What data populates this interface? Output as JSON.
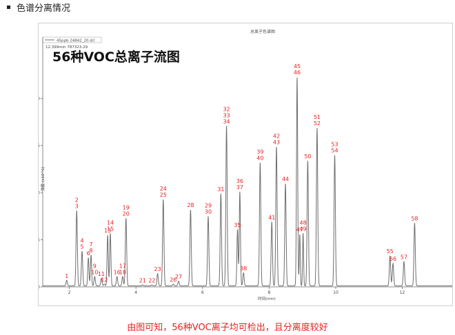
{
  "section_heading": "色谱分离情况",
  "caption": "由图可知，56种VOC离子均可检出，且分离度较好",
  "colors": {
    "trace": "#6d6d6d",
    "peak_label": "#e8201f",
    "caption": "#e8201f",
    "axis": "#666666"
  },
  "chart_data": {
    "type": "line",
    "title": "总离子色谱图",
    "overlay_title": "56种VOC总离子流图",
    "legend": {
      "entry": "45ppb 24842_20.d/l",
      "placement": "top-left"
    },
    "info_text": "12.399min  787323.29",
    "xlabel": "时间(min)",
    "ylabel": "强度 (x10^6)",
    "xlim": [
      1.2,
      13.5
    ],
    "ylim": [
      0,
      2.25
    ],
    "xticks": [
      "2",
      "4",
      "6",
      "8",
      "10",
      "12"
    ],
    "yticks": [
      "0.0",
      "0.5",
      "1.0",
      "1.5",
      "2.0"
    ],
    "grid": false,
    "series": [
      {
        "baseline": 0.01,
        "peaks": [
          {
            "label": "1",
            "x": 1.92,
            "y": 0.06,
            "w": 0.02
          },
          {
            "label": "2\n3",
            "x": 2.22,
            "y": 0.8,
            "w": 0.02
          },
          {
            "label": "4\n5",
            "x": 2.38,
            "y": 0.37,
            "w": 0.02
          },
          {
            "label": "6",
            "x": 2.57,
            "y": 0.3,
            "w": 0.018
          },
          {
            "label": "7\n8",
            "x": 2.65,
            "y": 0.33,
            "w": 0.018
          },
          {
            "label": "9\n10",
            "x": 2.76,
            "y": 0.1,
            "w": 0.02
          },
          {
            "label": "11",
            "x": 2.96,
            "y": 0.08,
            "w": 0.02
          },
          {
            "label": "12",
            "x": 3.05,
            "y": 0.02,
            "w": 0.02
          },
          {
            "label": "13",
            "x": 3.15,
            "y": 0.54,
            "w": 0.018
          },
          {
            "label": "14\n15",
            "x": 3.23,
            "y": 0.56,
            "w": 0.018
          },
          {
            "label": "16",
            "x": 3.43,
            "y": 0.1,
            "w": 0.02
          },
          {
            "label": "17\n18",
            "x": 3.6,
            "y": 0.1,
            "w": 0.02
          },
          {
            "label": "19\n20",
            "x": 3.7,
            "y": 0.72,
            "w": 0.02
          },
          {
            "label": "21",
            "x": 4.2,
            "y": 0.01,
            "w": 0.02
          },
          {
            "label": "22",
            "x": 4.48,
            "y": 0.01,
            "w": 0.02
          },
          {
            "label": "23",
            "x": 4.65,
            "y": 0.13,
            "w": 0.02
          },
          {
            "label": "24\n25",
            "x": 4.82,
            "y": 0.92,
            "w": 0.02
          },
          {
            "label": "26",
            "x": 5.12,
            "y": 0.02,
            "w": 0.02
          },
          {
            "label": "27",
            "x": 5.28,
            "y": 0.05,
            "w": 0.02
          },
          {
            "label": "28",
            "x": 5.64,
            "y": 0.81,
            "w": 0.02
          },
          {
            "label": "29\n30",
            "x": 6.17,
            "y": 0.74,
            "w": 0.02
          },
          {
            "label": "31",
            "x": 6.55,
            "y": 0.98,
            "w": 0.02
          },
          {
            "label": "32\n33\n34",
            "x": 6.72,
            "y": 1.7,
            "w": 0.02
          },
          {
            "label": "35",
            "x": 7.05,
            "y": 0.6,
            "w": 0.018
          },
          {
            "label": "36\n37",
            "x": 7.12,
            "y": 1.0,
            "w": 0.018
          },
          {
            "label": "38",
            "x": 7.23,
            "y": 0.14,
            "w": 0.02
          },
          {
            "label": "39\n40",
            "x": 7.73,
            "y": 1.31,
            "w": 0.02
          },
          {
            "label": "41",
            "x": 8.08,
            "y": 0.68,
            "w": 0.02
          },
          {
            "label": "42\n43",
            "x": 8.22,
            "y": 1.48,
            "w": 0.02
          },
          {
            "label": "44",
            "x": 8.49,
            "y": 1.09,
            "w": 0.02
          },
          {
            "label": "45\n46",
            "x": 8.84,
            "y": 2.22,
            "w": 0.018
          },
          {
            "label": "47",
            "x": 8.92,
            "y": 0.55,
            "w": 0.015
          },
          {
            "label": "48\n49",
            "x": 9.02,
            "y": 0.56,
            "w": 0.015
          },
          {
            "label": "50",
            "x": 9.16,
            "y": 1.33,
            "w": 0.02
          },
          {
            "label": "51\n52",
            "x": 9.44,
            "y": 1.68,
            "w": 0.02
          },
          {
            "label": "53\n54",
            "x": 9.97,
            "y": 1.39,
            "w": 0.02
          },
          {
            "label": "55",
            "x": 11.63,
            "y": 0.32,
            "w": 0.02
          },
          {
            "label": "56",
            "x": 11.72,
            "y": 0.24,
            "w": 0.02
          },
          {
            "label": "57",
            "x": 12.05,
            "y": 0.26,
            "w": 0.02
          },
          {
            "label": "58",
            "x": 12.37,
            "y": 0.67,
            "w": 0.02
          }
        ]
      }
    ]
  }
}
